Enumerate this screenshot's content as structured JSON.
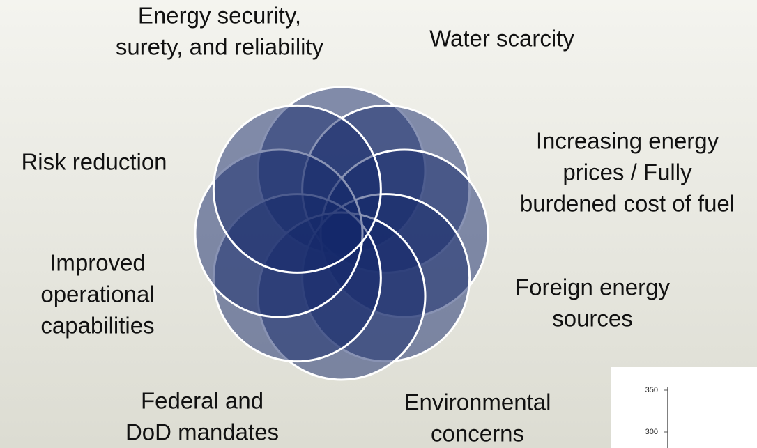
{
  "nodes": [
    {
      "lines": [
        "Energy security,",
        "surety, and reliability"
      ]
    },
    {
      "lines": [
        "Water scarcity"
      ]
    },
    {
      "lines": [
        "Increasing energy",
        "prices / Fully",
        "burdened cost of fuel"
      ]
    },
    {
      "lines": [
        "Foreign energy",
        "sources"
      ]
    },
    {
      "lines": [
        "Environmental",
        "concerns"
      ]
    },
    {
      "lines": [
        "Federal and",
        "DoD mandates"
      ]
    },
    {
      "lines": [
        "Improved",
        "operational",
        "capabilities"
      ]
    },
    {
      "lines": [
        "Risk reduction"
      ]
    }
  ],
  "inset": {
    "ticks": [
      350,
      300
    ]
  }
}
